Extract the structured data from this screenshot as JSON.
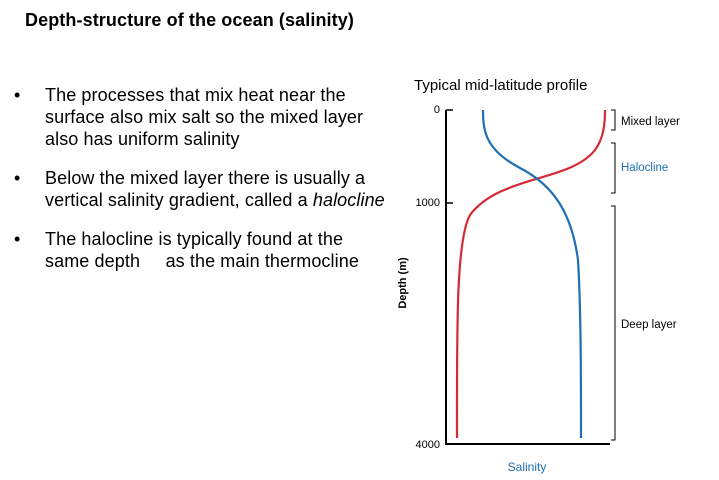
{
  "slide": {
    "title": "Depth-structure of the ocean (salinity)",
    "bullets": [
      {
        "text": "The processes that mix heat near the surface also mix salt so the mixed layer also has uniform salinity"
      },
      {
        "text": "Below the mixed layer there is usually a vertical salinity gradient, called a ",
        "em": "halocline"
      },
      {
        "text": "The halocline is typically found at the same depth     as the main thermocline"
      }
    ]
  },
  "chart_data": {
    "type": "line",
    "title": "Typical mid-latitude profile",
    "xlabel": "Salinity",
    "ylabel": "Depth (m)",
    "y_ticks": [
      "0",
      "1000",
      "4000"
    ],
    "layers": [
      {
        "name": "Mixed layer",
        "color": "#000000"
      },
      {
        "name": "Halocline",
        "color": "#1f6fb2"
      },
      {
        "name": "Deep layer",
        "color": "#000000"
      }
    ],
    "series": [
      {
        "color": "#d42a35"
      },
      {
        "color": "#1f6fb2"
      }
    ]
  }
}
